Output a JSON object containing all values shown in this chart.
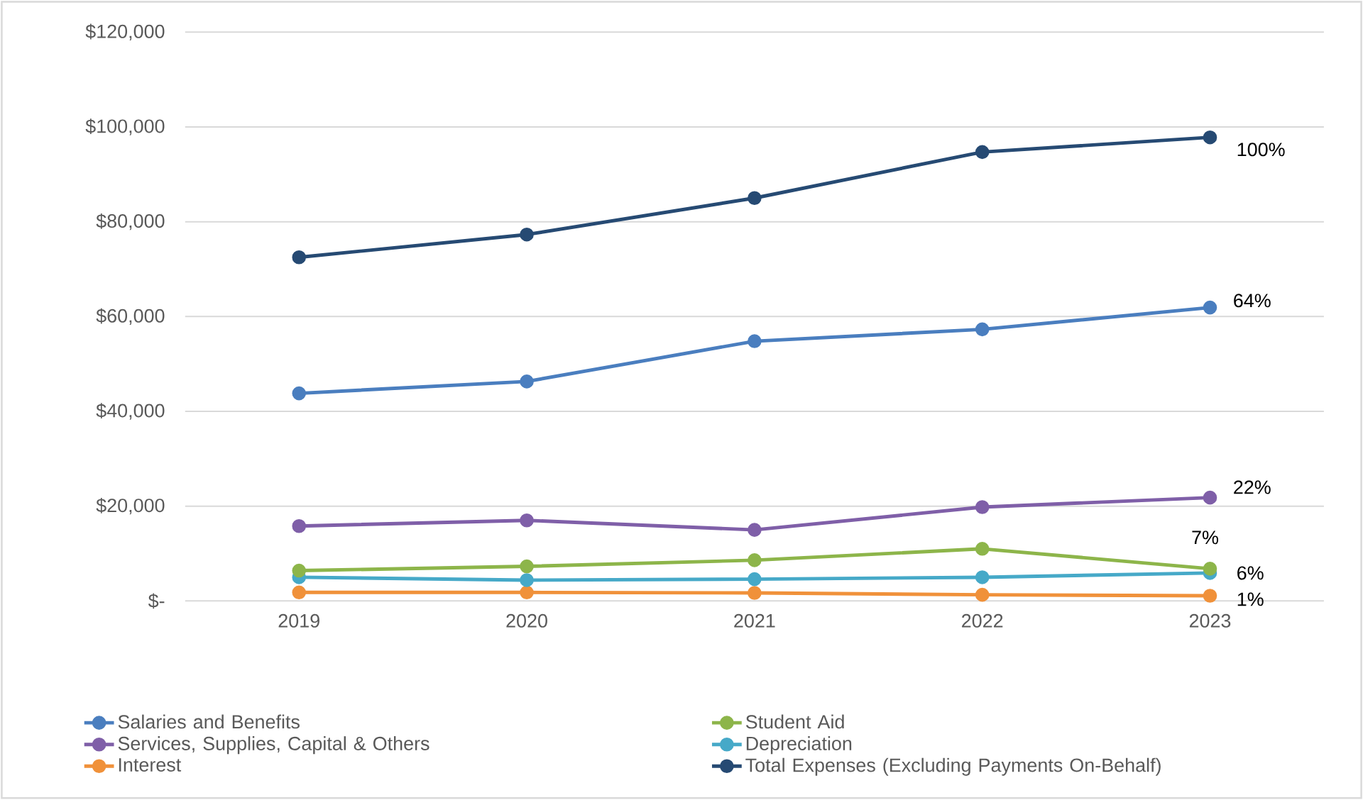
{
  "chart_data": {
    "type": "line",
    "categories": [
      "2019",
      "2020",
      "2021",
      "2022",
      "2023"
    ],
    "series": [
      {
        "name": "Salaries and Benefits",
        "color": "#4a7ebf",
        "values": [
          43800,
          46300,
          54800,
          57300,
          61900
        ]
      },
      {
        "name": "Student Aid",
        "color": "#8db54a",
        "values": [
          6400,
          7300,
          8600,
          11000,
          6800
        ]
      },
      {
        "name": "Services, Supplies, Capital & Others",
        "color": "#7f5fa8",
        "values": [
          15800,
          17000,
          15000,
          19800,
          21800
        ]
      },
      {
        "name": "Depreciation",
        "color": "#46a9c8",
        "values": [
          5000,
          4400,
          4600,
          5000,
          5900
        ]
      },
      {
        "name": "Interest",
        "color": "#f0913a",
        "values": [
          1800,
          1800,
          1700,
          1300,
          1100
        ]
      },
      {
        "name": "Total Expenses (Excluding Payments On-Behalf)",
        "color": "#264a73",
        "values": [
          72500,
          77300,
          85000,
          94700,
          97800
        ]
      }
    ],
    "ylim": [
      0,
      120000
    ],
    "yticks": [
      {
        "value": 0,
        "label": "$-"
      },
      {
        "value": 20000,
        "label": "$20,000"
      },
      {
        "value": 40000,
        "label": "$40,000"
      },
      {
        "value": 60000,
        "label": "$60,000"
      },
      {
        "value": 80000,
        "label": "$80,000"
      },
      {
        "value": 100000,
        "label": "$100,000"
      },
      {
        "value": 120000,
        "label": "$120,000"
      }
    ],
    "annotations": [
      {
        "text": "100%",
        "x": "2023",
        "y": 97800
      },
      {
        "text": "64%",
        "x": "2023",
        "y": 61900
      },
      {
        "text": "22%",
        "x": "2023",
        "y": 21800
      },
      {
        "text": "7%",
        "x": "2023",
        "y": 6800
      },
      {
        "text": "6%",
        "x": "2023",
        "y": 5900
      },
      {
        "text": "1%",
        "x": "2023",
        "y": 1100
      }
    ],
    "grid": "y",
    "legend": "bottom",
    "marker": "circle",
    "line_style": "solid"
  }
}
